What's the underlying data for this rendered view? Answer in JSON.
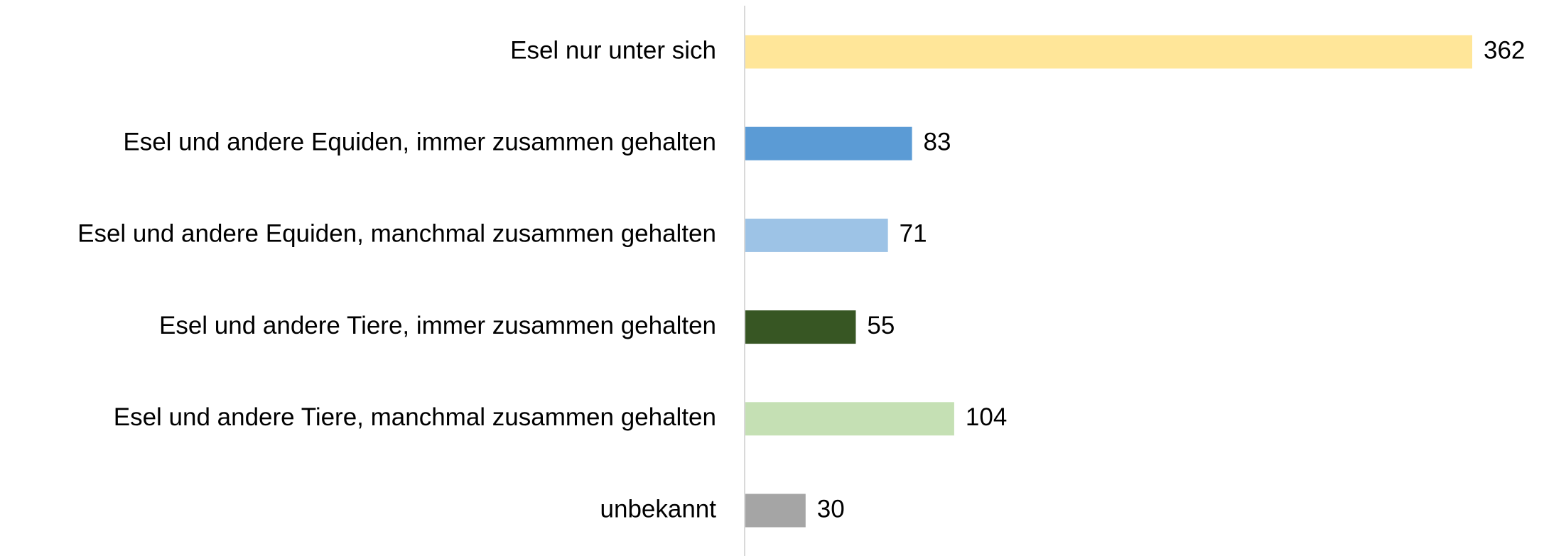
{
  "chart_data": {
    "type": "barh",
    "categories": [
      "Esel nur unter sich",
      "Esel und andere Equiden, immer zusammen gehalten",
      "Esel und andere Equiden, manchmal zusammen gehalten",
      "Esel und andere Tiere, immer zusammen gehalten",
      "Esel und andere Tiere, manchmal zusammen gehalten",
      "unbekannt"
    ],
    "values": [
      362,
      83,
      71,
      55,
      104,
      30
    ],
    "colors": [
      "#ffe699",
      "#5b9bd5",
      "#9dc3e6",
      "#375623",
      "#c5e0b4",
      "#a5a5a5"
    ]
  }
}
